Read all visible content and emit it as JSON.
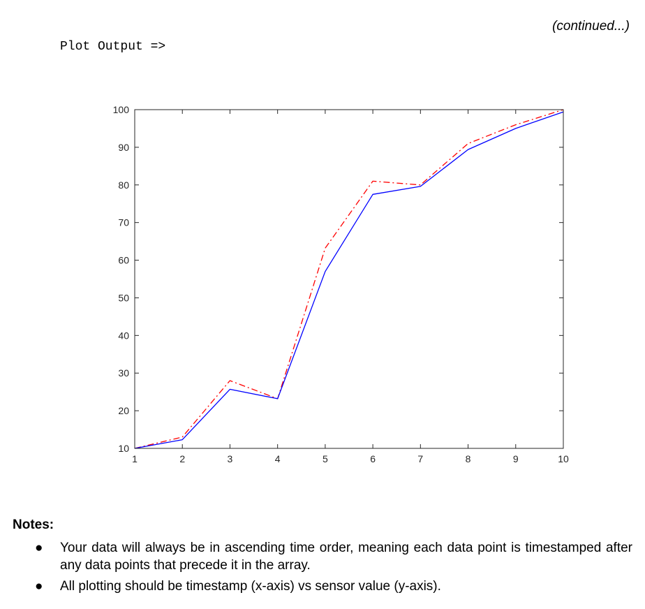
{
  "header": {
    "continued_label": "(continued...)",
    "plot_output_label": "Plot Output =>"
  },
  "chart_data": {
    "type": "line",
    "title": "",
    "xlabel": "",
    "ylabel": "",
    "xlim": [
      1,
      10
    ],
    "ylim": [
      10,
      100
    ],
    "xticks": [
      "1",
      "2",
      "3",
      "4",
      "5",
      "6",
      "7",
      "8",
      "9",
      "10"
    ],
    "yticks": [
      "10",
      "20",
      "30",
      "40",
      "50",
      "60",
      "70",
      "80",
      "90",
      "100"
    ],
    "grid": false,
    "legend": "none",
    "series": [
      {
        "style": "solid",
        "color": "#0000ff",
        "x": [
          1,
          2,
          3,
          4,
          5,
          6,
          7,
          8,
          9,
          10
        ],
        "y": [
          10,
          12.3,
          25.7,
          23.2,
          57,
          77.5,
          79.6,
          89.4,
          95,
          99.4
        ]
      },
      {
        "style": "dash-dot",
        "color": "#ff0000",
        "x": [
          1,
          2,
          3,
          4,
          5,
          6,
          7,
          8,
          9,
          10
        ],
        "y": [
          10,
          13,
          28,
          23.2,
          63.2,
          81,
          80,
          91,
          96,
          100
        ]
      }
    ]
  },
  "notes": {
    "title": "Notes:",
    "bullet_glyph": "●",
    "items": [
      "Your data will always be in ascending time order, meaning each data point is timestamped after any data points that precede it in the array.",
      "All plotting should be timestamp (x-axis) vs sensor value (y-axis)."
    ]
  }
}
